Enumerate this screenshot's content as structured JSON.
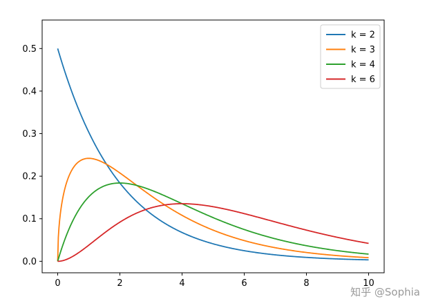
{
  "chart_data": {
    "type": "line",
    "title": "",
    "xlabel": "",
    "ylabel": "",
    "xlim": [
      -0.5,
      10.5
    ],
    "ylim": [
      -0.027,
      0.567
    ],
    "xticks": [
      0,
      2,
      4,
      6,
      8,
      10
    ],
    "yticks": [
      0.0,
      0.1,
      0.2,
      0.3,
      0.4,
      0.5
    ],
    "xtick_labels": [
      "0",
      "2",
      "4",
      "6",
      "8",
      "10"
    ],
    "ytick_labels": [
      "0.0",
      "0.1",
      "0.2",
      "0.3",
      "0.4",
      "0.5"
    ],
    "grid": false,
    "legend_position": "top-right",
    "series": [
      {
        "name": "k = 2",
        "color": "#1f77b4",
        "k": 2
      },
      {
        "name": "k = 3",
        "color": "#ff7f0e",
        "k": 3
      },
      {
        "name": "k = 4",
        "color": "#2ca02c",
        "k": 4
      },
      {
        "name": "k = 6",
        "color": "#d62728",
        "k": 6
      }
    ]
  },
  "watermark": "知乎 @Sophia"
}
